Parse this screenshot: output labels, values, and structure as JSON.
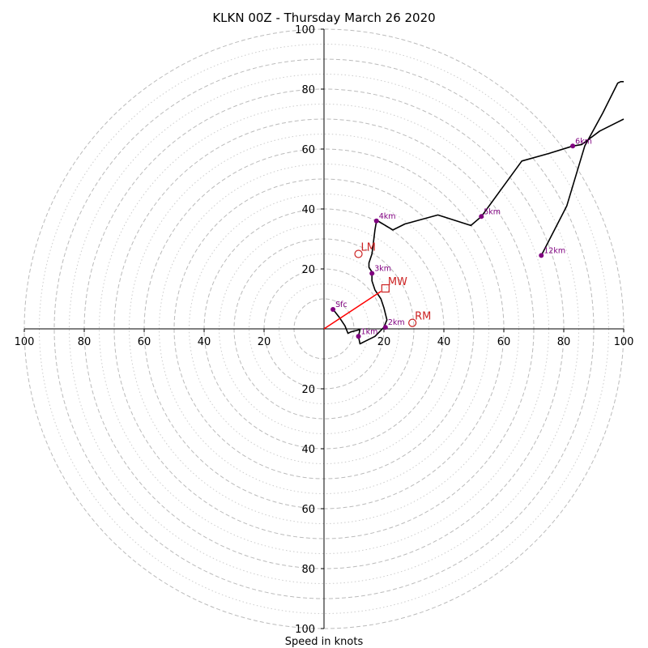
{
  "chart_data": {
    "type": "line",
    "title": "KLKN 00Z - Thursday March 26 2020",
    "xlabel": "Speed in knots",
    "ylabel": "",
    "xlim": [
      -100,
      100
    ],
    "ylim": [
      -100,
      100
    ],
    "grid": true,
    "rings_major": [
      10,
      20,
      30,
      40,
      50,
      60,
      70,
      80,
      90,
      100
    ],
    "rings_minor": [
      15,
      25,
      35,
      45,
      55,
      65,
      75,
      85,
      95
    ],
    "x_ticks": [
      {
        "v": -100,
        "label": "100"
      },
      {
        "v": -80,
        "label": "80"
      },
      {
        "v": -60,
        "label": "60"
      },
      {
        "v": -40,
        "label": "40"
      },
      {
        "v": -20,
        "label": "20"
      },
      {
        "v": 20,
        "label": "20"
      },
      {
        "v": 40,
        "label": "40"
      },
      {
        "v": 60,
        "label": "60"
      },
      {
        "v": 80,
        "label": "80"
      },
      {
        "v": 100,
        "label": "100"
      }
    ],
    "y_ticks": [
      {
        "v": 100,
        "label": "100"
      },
      {
        "v": 80,
        "label": "80"
      },
      {
        "v": 60,
        "label": "60"
      },
      {
        "v": 40,
        "label": "40"
      },
      {
        "v": 20,
        "label": "20"
      },
      {
        "v": -20,
        "label": "20"
      },
      {
        "v": -40,
        "label": "40"
      },
      {
        "v": -60,
        "label": "60"
      },
      {
        "v": -80,
        "label": "80"
      },
      {
        "v": -100,
        "label": "100"
      }
    ],
    "series": [
      {
        "color": "#000000",
        "points": [
          [
            3,
            6.5
          ],
          [
            5,
            4
          ],
          [
            7,
            1
          ],
          [
            8,
            -1.5
          ],
          [
            9,
            -1
          ],
          [
            11,
            -0.5
          ],
          [
            12,
            -0.2
          ],
          [
            11.5,
            -2.5
          ],
          [
            12,
            -5
          ],
          [
            14,
            -4
          ],
          [
            17,
            -2.5
          ],
          [
            20,
            0.5
          ],
          [
            21,
            3
          ],
          [
            20,
            7
          ],
          [
            19,
            10
          ],
          [
            17,
            13
          ],
          [
            16,
            16
          ],
          [
            16,
            19
          ],
          [
            15,
            20.5
          ],
          [
            15,
            22
          ],
          [
            16,
            25
          ],
          [
            16.5,
            29
          ],
          [
            17,
            33
          ],
          [
            17.5,
            36
          ],
          [
            18,
            36
          ],
          [
            23,
            33
          ],
          [
            27,
            35
          ],
          [
            38,
            38
          ],
          [
            49,
            34.5
          ],
          [
            52.5,
            37.5
          ],
          [
            66,
            56
          ],
          [
            75,
            58.5
          ],
          [
            83,
            61
          ],
          [
            86,
            61.5
          ],
          [
            92,
            66
          ],
          [
            100,
            70
          ]
        ]
      },
      {
        "color": "#000000",
        "points": [
          [
            72.5,
            24.5
          ],
          [
            81,
            41
          ],
          [
            87,
            61
          ],
          [
            93,
            72
          ],
          [
            98,
            82
          ],
          [
            99,
            82.5
          ],
          [
            100,
            82.5
          ]
        ]
      }
    ],
    "height_markers": [
      {
        "label": "Sfc",
        "x": 3,
        "y": 6.5
      },
      {
        "label": "1km",
        "x": 11.5,
        "y": -2.5
      },
      {
        "label": "2km",
        "x": 20.5,
        "y": 0.5
      },
      {
        "label": "3km",
        "x": 16,
        "y": 18.5
      },
      {
        "label": "4km",
        "x": 17.5,
        "y": 36
      },
      {
        "label": "5km",
        "x": 52.5,
        "y": 37.5
      },
      {
        "label": "6km",
        "x": 83,
        "y": 61
      },
      {
        "label": "12km",
        "x": 72.5,
        "y": 24.5
      }
    ],
    "storm_motion": [
      {
        "label": "LM",
        "x": 11.5,
        "y": 25,
        "marker": "circle"
      },
      {
        "label": "MW",
        "x": 20.5,
        "y": 13.5,
        "marker": "square"
      },
      {
        "label": "RM",
        "x": 29.5,
        "y": 2,
        "marker": "circle"
      }
    ],
    "shear_vector": {
      "from": [
        0,
        0
      ],
      "to": [
        19,
        12.5
      ],
      "color": "#ff0000"
    },
    "colors": {
      "trace": "#000000",
      "height_markers": "#800080",
      "storm_motion": "#cc2222",
      "shear_vector": "#ff0000",
      "grid_major": "#bbbbbb",
      "grid_minor": "#cccccc"
    }
  }
}
